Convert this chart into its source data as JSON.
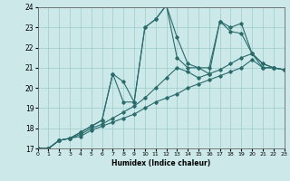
{
  "bg_color": "#cce8e8",
  "grid_color": "#99cccc",
  "line_color": "#2a6b6b",
  "xlabel": "Humidex (Indice chaleur)",
  "xlim": [
    0,
    23
  ],
  "ylim": [
    17,
    24
  ],
  "xticks": [
    0,
    1,
    2,
    3,
    4,
    5,
    6,
    7,
    8,
    9,
    10,
    11,
    12,
    13,
    14,
    15,
    16,
    17,
    18,
    19,
    20,
    21,
    22,
    23
  ],
  "yticks": [
    17,
    18,
    19,
    20,
    21,
    22,
    23,
    24
  ],
  "lines": [
    {
      "x": [
        0,
        1,
        2,
        3,
        4,
        5,
        6,
        7,
        8,
        9,
        10,
        11,
        12,
        13,
        14,
        15,
        16,
        17,
        18,
        19,
        20,
        21,
        22,
        23
      ],
      "y": [
        17,
        17,
        17.4,
        17.5,
        17.6,
        17.9,
        18.1,
        18.3,
        18.5,
        18.7,
        19.0,
        19.3,
        19.5,
        19.7,
        20.0,
        20.2,
        20.4,
        20.6,
        20.8,
        21.0,
        21.4,
        21.0,
        21.0,
        20.9
      ]
    },
    {
      "x": [
        0,
        1,
        2,
        3,
        4,
        5,
        6,
        7,
        8,
        9,
        10,
        11,
        12,
        13,
        14,
        15,
        16,
        17,
        18,
        19,
        20,
        21,
        22,
        23
      ],
      "y": [
        17,
        17,
        17.4,
        17.5,
        17.7,
        18.0,
        18.2,
        18.5,
        18.8,
        19.1,
        19.5,
        20.0,
        20.5,
        21.0,
        20.8,
        20.5,
        20.7,
        20.9,
        21.2,
        21.5,
        21.7,
        21.0,
        21.0,
        20.9
      ]
    },
    {
      "x": [
        0,
        1,
        2,
        3,
        4,
        5,
        6,
        7,
        8,
        9,
        10,
        11,
        12,
        13,
        14,
        15,
        16,
        17,
        18,
        19,
        20,
        21,
        22,
        23
      ],
      "y": [
        17,
        17,
        17.4,
        17.5,
        17.8,
        18.1,
        18.4,
        20.7,
        20.3,
        19.3,
        23.0,
        23.4,
        24.1,
        21.5,
        21.0,
        21.0,
        20.7,
        23.3,
        22.8,
        22.7,
        21.7,
        21.2,
        21.0,
        20.9
      ]
    },
    {
      "x": [
        0,
        1,
        2,
        3,
        4,
        5,
        6,
        7,
        8,
        9,
        10,
        11,
        12,
        13,
        14,
        15,
        16,
        17,
        18,
        19,
        20,
        21,
        22,
        23
      ],
      "y": [
        17,
        17,
        17.4,
        17.5,
        17.8,
        18.1,
        18.4,
        20.7,
        19.3,
        19.3,
        23.0,
        23.4,
        24.1,
        22.5,
        21.2,
        21.0,
        21.0,
        23.3,
        23.0,
        23.2,
        21.7,
        21.2,
        21.0,
        20.9
      ]
    }
  ]
}
